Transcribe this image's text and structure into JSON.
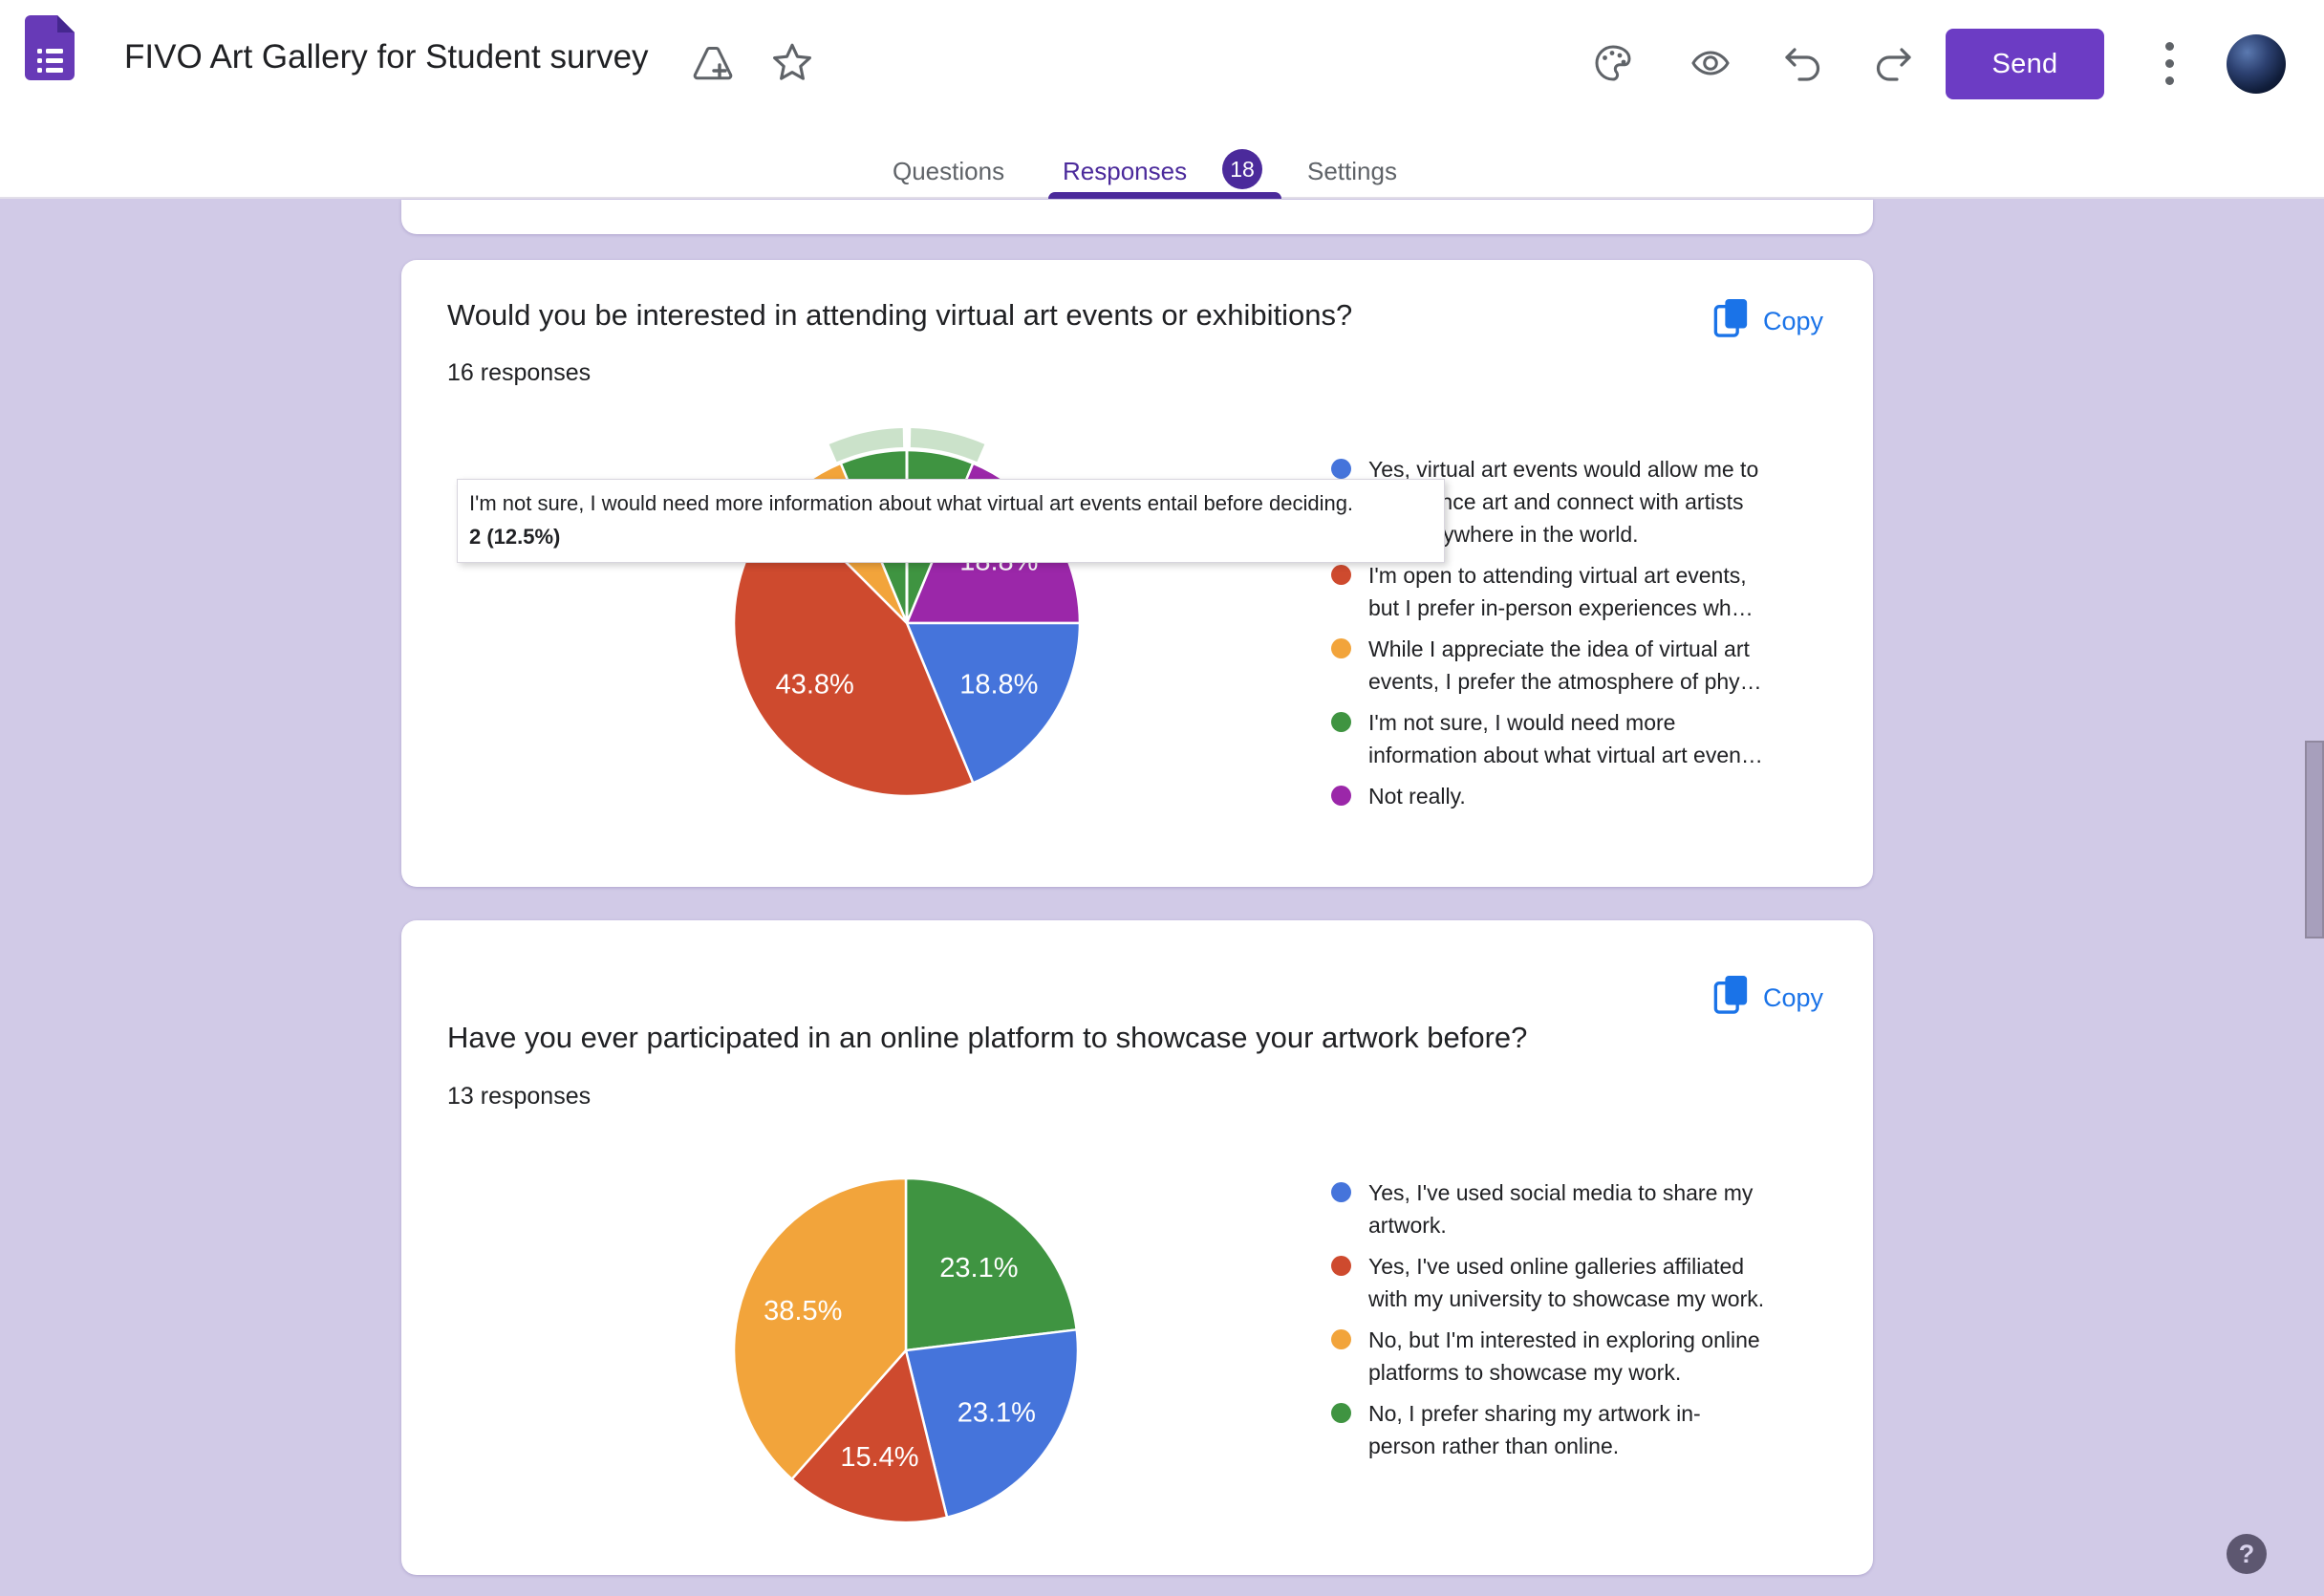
{
  "header": {
    "title": "FIVO Art Gallery for Student survey",
    "send_label": "Send",
    "icons": [
      "forms-logo",
      "move-to-folder-icon",
      "star-icon",
      "palette-icon",
      "preview-eye-icon",
      "undo-icon",
      "redo-icon",
      "more-kebab-icon",
      "avatar"
    ]
  },
  "tabs": {
    "questions": "Questions",
    "responses": "Responses",
    "responses_count": "18",
    "settings": "Settings"
  },
  "colors": {
    "accent_purple": "#6c3cc4",
    "tab_purple": "#4b2a9b",
    "copy_blue": "#1a73e8",
    "background": "#d1cae7",
    "icon_gray": "#5f6368"
  },
  "help": {
    "label": "?"
  },
  "cards": [
    {
      "question": "Would you be interested in attending virtual art events or exhibitions?",
      "responses_label": "16 responses",
      "copy_label": "Copy",
      "chart_index": 0,
      "tooltip": {
        "line1": "I'm not sure, I would need more information about what virtual art events entail before deciding.",
        "line2": "2 (12.5%)"
      }
    },
    {
      "question": "Have you ever participated in an online platform to showcase your artwork before?",
      "responses_label": "13 responses",
      "copy_label": "Copy",
      "chart_index": 1
    }
  ],
  "chart_data": [
    {
      "type": "pie",
      "title": "Would you be interested in attending virtual art events or exhibitions?",
      "total_responses": 16,
      "start_angle_deg": -22.5,
      "start_divider": true,
      "highlight_color": "#cbe2ca",
      "legend_position": "right",
      "slices": [
        {
          "label": "Yes, virtual art events would allow me to experience art and connect with artists from anywhere in the world.",
          "value": 3,
          "pct": "18.8%",
          "color": "#4574db",
          "show_pct_label": true
        },
        {
          "label": "I'm open to attending virtual art events, but I prefer in-person experiences wh…",
          "value": 7,
          "pct": "43.8%",
          "color": "#ce4a2e",
          "show_pct_label": true
        },
        {
          "label": "While I appreciate the idea of virtual art events, I prefer the atmosphere of phy…",
          "value": 1,
          "pct": "6.3%",
          "color": "#f2a43b",
          "show_pct_label": false
        },
        {
          "label": "I'm not sure, I would need more information about what virtual art events entail before deciding.",
          "value": 2,
          "pct": "12.5%",
          "color": "#3f9441",
          "show_pct_label": false,
          "highlighted": true
        },
        {
          "label": "Not really.",
          "value": 3,
          "pct": "18.8%",
          "color": "#9b27a9",
          "show_pct_label": true
        }
      ],
      "draw_order": [
        3,
        4,
        0,
        1,
        2
      ],
      "legend": [
        {
          "color": "#4574db",
          "lines": [
            "Yes, virtual art events would allow me to",
            "experience art and connect with artists",
            "from anywhere in the world."
          ]
        },
        {
          "color": "#ce4a2e",
          "lines": [
            "I'm open to attending virtual art events,",
            "but I prefer in-person experiences wh…"
          ]
        },
        {
          "color": "#f2a43b",
          "lines": [
            "While I appreciate the idea of virtual art",
            "events, I prefer the atmosphere of phy…"
          ]
        },
        {
          "color": "#3f9441",
          "lines": [
            "I'm not sure, I would need more",
            "information about what virtual art even…"
          ]
        },
        {
          "color": "#9b27a9",
          "lines": [
            "Not really."
          ]
        }
      ]
    },
    {
      "type": "pie",
      "title": "Have you ever participated in an online platform to showcase your artwork before?",
      "total_responses": 13,
      "start_angle_deg": 0,
      "start_divider": false,
      "legend_position": "right",
      "slices": [
        {
          "label": "Yes, I've used social media to share my artwork.",
          "value": 3,
          "pct": "23.1%",
          "color": "#4574db",
          "show_pct_label": true
        },
        {
          "label": "Yes, I've used online galleries affiliated with my university to showcase my work.",
          "value": 2,
          "pct": "15.4%",
          "color": "#ce4a2e",
          "show_pct_label": true
        },
        {
          "label": "No, but I'm interested in exploring online platforms to showcase my work.",
          "value": 5,
          "pct": "38.5%",
          "color": "#f2a43b",
          "show_pct_label": true
        },
        {
          "label": "No, I prefer sharing my artwork in-person rather than online.",
          "value": 3,
          "pct": "23.1%",
          "color": "#3f9441",
          "show_pct_label": true
        }
      ],
      "draw_order": [
        3,
        0,
        1,
        2
      ],
      "legend": [
        {
          "color": "#4574db",
          "lines": [
            "Yes, I've used social media to share my",
            "artwork."
          ]
        },
        {
          "color": "#ce4a2e",
          "lines": [
            "Yes, I've used online galleries affiliated",
            "with my university to showcase my work."
          ]
        },
        {
          "color": "#f2a43b",
          "lines": [
            "No, but I'm interested in exploring online",
            "platforms to showcase my work."
          ]
        },
        {
          "color": "#3f9441",
          "lines": [
            "No, I prefer sharing my artwork in-",
            "person rather than online."
          ]
        }
      ]
    }
  ]
}
